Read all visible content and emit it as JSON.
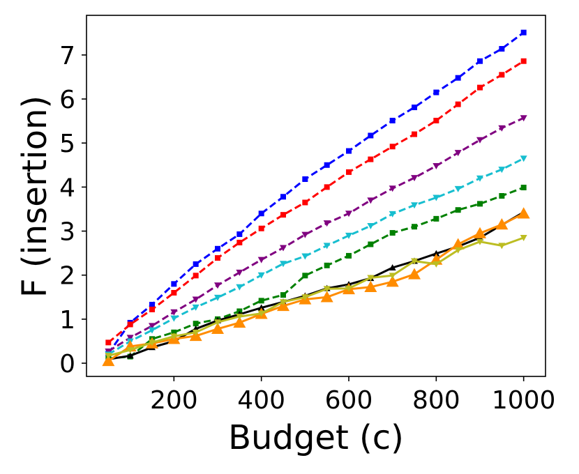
{
  "chart_data": {
    "type": "line",
    "title": "",
    "xlabel": "Budget (c)",
    "ylabel": "F (insertion)",
    "xlim": [
      0,
      1050
    ],
    "ylim": [
      -0.3,
      7.9
    ],
    "xticks": [
      200,
      400,
      600,
      800,
      1000
    ],
    "yticks": [
      0,
      1,
      2,
      3,
      4,
      5,
      6,
      7
    ],
    "xtick_labels": [
      "200",
      "400",
      "600",
      "800",
      "1000"
    ],
    "ytick_labels": [
      "0",
      "1",
      "2",
      "3",
      "4",
      "5",
      "6",
      "7"
    ],
    "grid": false,
    "legend": "none",
    "x": [
      50,
      100,
      150,
      200,
      250,
      300,
      350,
      400,
      450,
      500,
      550,
      600,
      650,
      700,
      750,
      800,
      850,
      900,
      950,
      1000
    ],
    "series": [
      {
        "color": "#0000ff",
        "dash": "dashed",
        "marker": "square",
        "values": [
          0.22,
          0.92,
          1.33,
          1.8,
          2.25,
          2.6,
          2.93,
          3.4,
          3.78,
          4.18,
          4.5,
          4.82,
          5.17,
          5.51,
          5.81,
          6.15,
          6.48,
          6.86,
          7.14,
          7.51
        ]
      },
      {
        "color": "#ff0000",
        "dash": "dashed",
        "marker": "square",
        "values": [
          0.47,
          0.88,
          1.22,
          1.6,
          1.99,
          2.39,
          2.74,
          3.06,
          3.37,
          3.65,
          4.0,
          4.34,
          4.63,
          4.92,
          5.2,
          5.51,
          5.88,
          6.26,
          6.55,
          6.86
        ]
      },
      {
        "color": "#800080",
        "dash": "dashed",
        "marker": "triangle-down",
        "values": [
          0.27,
          0.58,
          0.85,
          1.16,
          1.45,
          1.77,
          2.06,
          2.35,
          2.62,
          2.92,
          3.18,
          3.4,
          3.7,
          3.97,
          4.21,
          4.48,
          4.78,
          5.07,
          5.34,
          5.57
        ]
      },
      {
        "color": "#17becf",
        "dash": "dashed",
        "marker": "triangle-down",
        "values": [
          0.2,
          0.5,
          0.75,
          1.02,
          1.27,
          1.49,
          1.73,
          2.0,
          2.26,
          2.43,
          2.67,
          2.9,
          3.12,
          3.39,
          3.59,
          3.76,
          3.96,
          4.2,
          4.4,
          4.65
        ]
      },
      {
        "color": "#008000",
        "dash": "dashed",
        "marker": "square",
        "values": [
          0.11,
          0.15,
          0.55,
          0.7,
          0.9,
          1.0,
          1.18,
          1.42,
          1.55,
          1.99,
          2.22,
          2.44,
          2.7,
          2.96,
          3.1,
          3.28,
          3.48,
          3.62,
          3.8,
          3.99
        ]
      },
      {
        "color": "#000000",
        "dash": "solid",
        "marker": "triangle-up",
        "values": [
          0.09,
          0.17,
          0.36,
          0.5,
          0.78,
          0.97,
          1.11,
          1.26,
          1.39,
          1.53,
          1.7,
          1.79,
          1.93,
          2.17,
          2.32,
          2.49,
          2.65,
          2.85,
          3.14,
          3.43
        ]
      },
      {
        "color": "#ff8c00",
        "dash": "solid",
        "marker": "triangle-up-large",
        "values": [
          0.05,
          0.38,
          0.45,
          0.55,
          0.62,
          0.78,
          0.92,
          1.12,
          1.3,
          1.45,
          1.5,
          1.68,
          1.73,
          1.85,
          2.02,
          2.35,
          2.7,
          2.95,
          3.15,
          3.4
        ]
      },
      {
        "color": "#bcbd22",
        "dash": "solid",
        "marker": "triangle-down",
        "values": [
          0.17,
          0.3,
          0.47,
          0.61,
          0.7,
          0.93,
          1.06,
          1.13,
          1.39,
          1.5,
          1.69,
          1.7,
          1.94,
          1.99,
          2.32,
          2.25,
          2.57,
          2.76,
          2.67,
          2.85
        ]
      }
    ]
  }
}
